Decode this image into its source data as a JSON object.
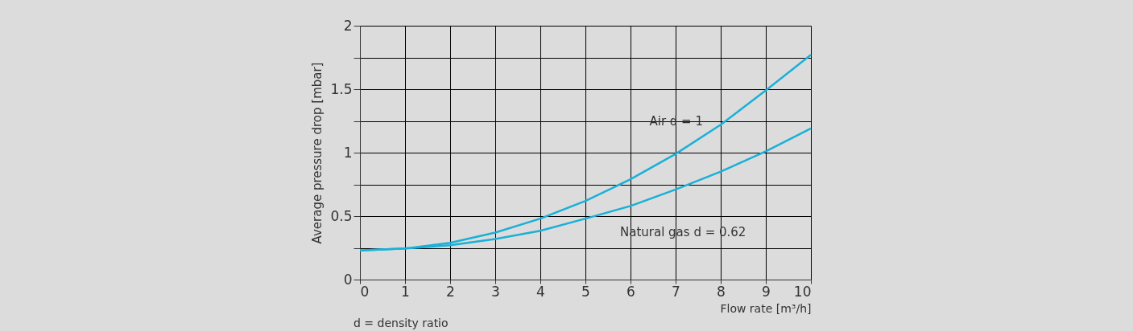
{
  "chart_data": {
    "type": "line",
    "xlabel": "Flow rate [m³/h]",
    "ylabel": "Average pressure drop [mbar]",
    "x": [
      0,
      1,
      2,
      3,
      4,
      5,
      6,
      7,
      8,
      9,
      10
    ],
    "series": [
      {
        "name": "Air d = 1",
        "color": "#1ab0d8",
        "values": [
          0.23,
          0.245,
          0.29,
          0.37,
          0.48,
          0.62,
          0.79,
          0.99,
          1.22,
          1.49,
          1.77
        ]
      },
      {
        "name": "Natural gas d = 0.62",
        "color": "#1ab0d8",
        "values": [
          0.23,
          0.245,
          0.27,
          0.32,
          0.385,
          0.48,
          0.58,
          0.71,
          0.85,
          1.01,
          1.19
        ]
      }
    ],
    "xlim": [
      0,
      10
    ],
    "xticks": [
      0,
      1,
      2,
      3,
      4,
      5,
      6,
      7,
      8,
      9,
      10
    ],
    "ylim": [
      0,
      2
    ],
    "yticks": [
      0,
      {
        "value": 0.25,
        "label": null
      },
      0.5,
      {
        "value": 0.75,
        "label": null
      },
      1,
      {
        "value": 1.25,
        "label": null
      },
      1.5,
      {
        "value": 1.75,
        "label": null
      },
      2
    ],
    "grid": true,
    "marker": "none",
    "line_style": "solid",
    "annotations": [
      "d = density ratio"
    ]
  }
}
